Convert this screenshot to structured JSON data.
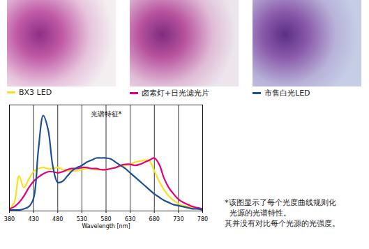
{
  "chart_data": {
    "type": "line",
    "title": "光谱特征*",
    "xlabel": "Wavelength [nm]",
    "x": [
      380,
      390,
      400,
      410,
      420,
      430,
      440,
      450,
      460,
      470,
      480,
      490,
      500,
      510,
      520,
      530,
      540,
      550,
      560,
      570,
      580,
      590,
      600,
      610,
      620,
      630,
      640,
      650,
      660,
      670,
      680,
      690,
      700,
      710,
      720,
      730,
      740,
      750,
      760,
      770,
      780
    ],
    "xlim": [
      380,
      780
    ],
    "xticks": [
      380,
      430,
      480,
      530,
      580,
      630,
      680,
      730,
      780
    ],
    "ylim": [
      0,
      1
    ],
    "grid": true,
    "tick_labels": "x",
    "legend": "top",
    "series": [
      {
        "name": "BX3 LED",
        "color": "#f7e21b",
        "values": [
          0.02,
          0.08,
          0.33,
          0.22,
          0.3,
          0.37,
          0.4,
          0.41,
          0.4,
          0.4,
          0.41,
          0.39,
          0.38,
          0.38,
          0.38,
          0.39,
          0.4,
          0.4,
          0.39,
          0.39,
          0.39,
          0.4,
          0.41,
          0.42,
          0.43,
          0.44,
          0.46,
          0.47,
          0.48,
          0.47,
          0.38,
          0.28,
          0.2,
          0.14,
          0.1,
          0.07,
          0.05,
          0.04,
          0.03,
          0.02,
          0.02
        ]
      },
      {
        "name": "卤素灯+日光滤光片",
        "color": "#e2007f",
        "values": [
          0.02,
          0.04,
          0.08,
          0.14,
          0.22,
          0.28,
          0.32,
          0.35,
          0.37,
          0.37,
          0.36,
          0.37,
          0.39,
          0.4,
          0.4,
          0.41,
          0.41,
          0.4,
          0.4,
          0.39,
          0.39,
          0.4,
          0.41,
          0.43,
          0.44,
          0.44,
          0.43,
          0.44,
          0.46,
          0.48,
          0.5,
          0.44,
          0.31,
          0.22,
          0.16,
          0.11,
          0.08,
          0.06,
          0.04,
          0.03,
          0.02
        ]
      },
      {
        "name": "市售白光LED",
        "color": "#1f4e96",
        "values": [
          0.01,
          0.01,
          0.01,
          0.02,
          0.04,
          0.12,
          0.58,
          0.9,
          0.77,
          0.42,
          0.27,
          0.28,
          0.33,
          0.38,
          0.41,
          0.43,
          0.46,
          0.48,
          0.5,
          0.5,
          0.5,
          0.49,
          0.46,
          0.43,
          0.4,
          0.36,
          0.32,
          0.28,
          0.24,
          0.2,
          0.16,
          0.13,
          0.1,
          0.08,
          0.06,
          0.05,
          0.04,
          0.03,
          0.02,
          0.02,
          0.01
        ]
      }
    ],
    "note": [
      "*该图显示了每个光度曲线规则化",
      "光源的光谱特性。",
      "其并没有对比每个光源的光强度。"
    ]
  }
}
